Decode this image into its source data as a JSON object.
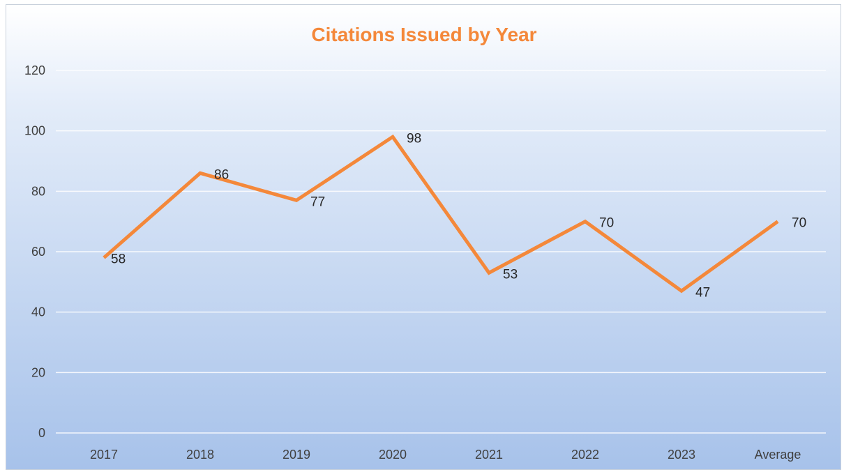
{
  "chart_data": {
    "type": "line",
    "title": "Citations Issued by Year",
    "xlabel": "",
    "ylabel": "",
    "categories": [
      "2017",
      "2018",
      "2019",
      "2020",
      "2021",
      "2022",
      "2023",
      "Average"
    ],
    "series": [
      {
        "values": [
          58,
          86,
          77,
          98,
          53,
          70,
          47,
          70
        ],
        "color": "#F4883A"
      }
    ],
    "ylim": [
      0,
      120
    ],
    "yticks": [
      0,
      20,
      40,
      60,
      80,
      100,
      120
    ],
    "grid": true,
    "legend": "none",
    "data_labels": [
      "58",
      "86",
      "77",
      "98",
      "53",
      "70",
      "47",
      "70"
    ],
    "colors": {
      "title": "#F4883A",
      "line": "#F4883A",
      "gridline": "#ffffff",
      "background_top": "#ffffff",
      "background_bottom": "#a7c2ea"
    }
  }
}
